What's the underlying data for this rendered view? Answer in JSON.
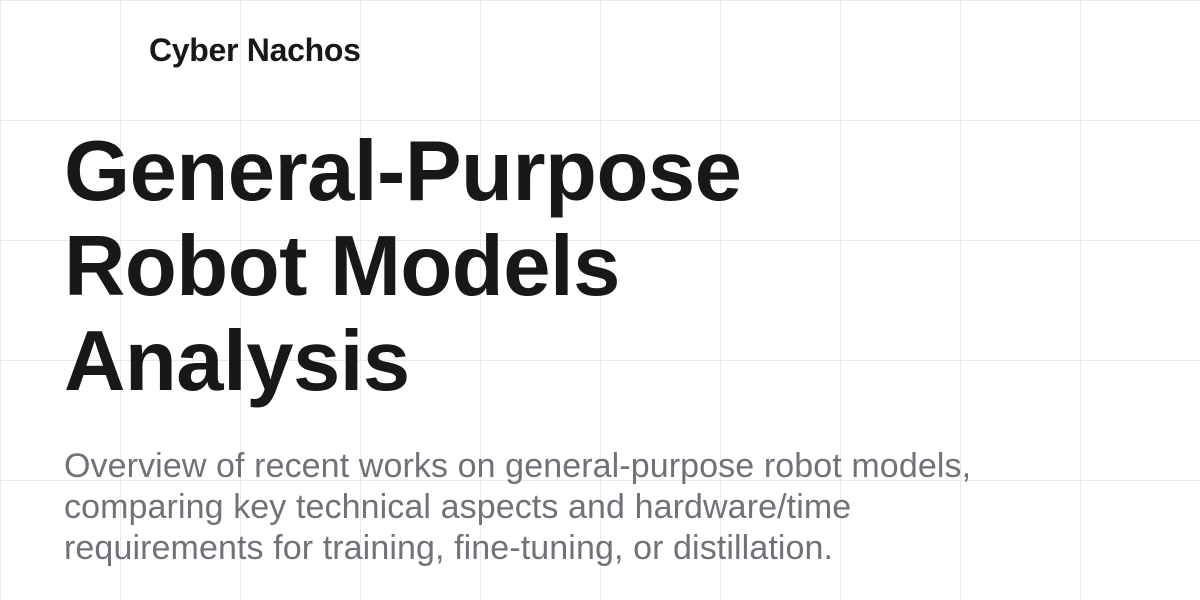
{
  "brand": {
    "name": "Cyber Nachos"
  },
  "hero": {
    "title_lines": [
      "General-Purpose",
      "Robot Models",
      "Analysis"
    ],
    "subtitle_lines": [
      "Overview of recent works on general-purpose robot models,",
      "comparing key technical aspects and hardware/time",
      "requirements for training, fine-tuning, or distillation."
    ]
  },
  "colors": {
    "background": "#ffffff",
    "grid": "#e9e9ea",
    "text_primary": "#18181b",
    "text_secondary": "#71717a"
  }
}
